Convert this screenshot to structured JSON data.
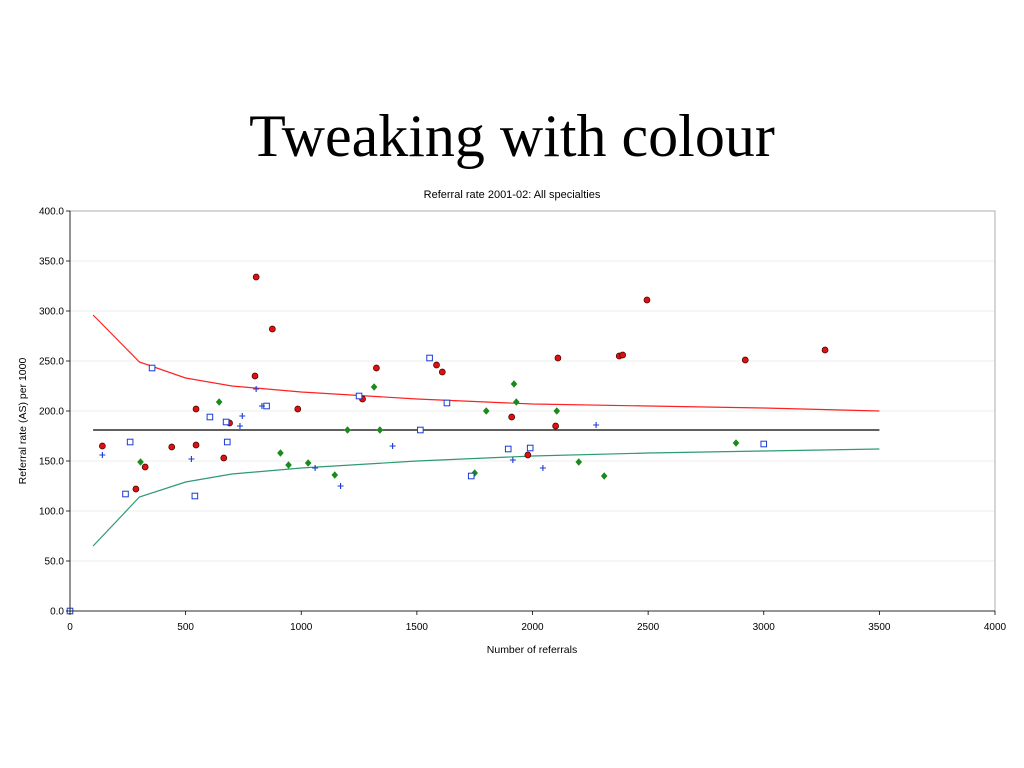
{
  "slide": {
    "title": "Tweaking with colour"
  },
  "chart_data": {
    "type": "scatter",
    "title": "Referral rate 2001-02: All specialties",
    "xlabel": "Number of referrals",
    "ylabel": "Referral rate (AS) per 1000",
    "xlim": [
      0,
      4000
    ],
    "ylim": [
      0,
      400
    ],
    "xticks": [
      0,
      500,
      1000,
      1500,
      2000,
      2500,
      3000,
      3500,
      4000
    ],
    "yticks": [
      0,
      50,
      100,
      150,
      200,
      250,
      300,
      350,
      400
    ],
    "x_tick_labels": [
      "0",
      "500",
      "1000",
      "1500",
      "2000",
      "2500",
      "3000",
      "3500",
      "4000"
    ],
    "y_tick_labels": [
      "0.0",
      "50.0",
      "100.0",
      "150.0",
      "200.0",
      "250.0",
      "300.0",
      "350.0",
      "400.0"
    ],
    "grid": "horizontal",
    "legend": "none",
    "scatter_series": [
      {
        "marker": "circle",
        "color": "#e01010",
        "points": [
          [
            140,
            165
          ],
          [
            285,
            122
          ],
          [
            325,
            144
          ],
          [
            440,
            164
          ],
          [
            545,
            202
          ],
          [
            545,
            166
          ],
          [
            665,
            153
          ],
          [
            690,
            188
          ],
          [
            800,
            235
          ],
          [
            805,
            334
          ],
          [
            875,
            282
          ],
          [
            985,
            202
          ],
          [
            1265,
            212
          ],
          [
            1325,
            243
          ],
          [
            1585,
            246
          ],
          [
            1610,
            239
          ],
          [
            1910,
            194
          ],
          [
            1980,
            156
          ],
          [
            2100,
            185
          ],
          [
            2110,
            253
          ],
          [
            2375,
            255
          ],
          [
            2390,
            256
          ],
          [
            2495,
            311
          ],
          [
            2920,
            251
          ],
          [
            3265,
            261
          ]
        ]
      },
      {
        "marker": "diamond",
        "color": "#1a8a1a",
        "points": [
          [
            305,
            149
          ],
          [
            645,
            209
          ],
          [
            910,
            158
          ],
          [
            945,
            146
          ],
          [
            1030,
            148
          ],
          [
            1145,
            136
          ],
          [
            1200,
            181
          ],
          [
            1315,
            224
          ],
          [
            1340,
            181
          ],
          [
            1750,
            138
          ],
          [
            1800,
            200
          ],
          [
            1920,
            227
          ],
          [
            1930,
            209
          ],
          [
            2105,
            200
          ],
          [
            2200,
            149
          ],
          [
            2310,
            135
          ],
          [
            2880,
            168
          ]
        ]
      },
      {
        "marker": "square",
        "color": "#1a3ad8",
        "points": [
          [
            0,
            0
          ],
          [
            240,
            117
          ],
          [
            260,
            169
          ],
          [
            355,
            243
          ],
          [
            540,
            115
          ],
          [
            605,
            194
          ],
          [
            675,
            189
          ],
          [
            680,
            169
          ],
          [
            850,
            205
          ],
          [
            1250,
            215
          ],
          [
            1515,
            181
          ],
          [
            1555,
            253
          ],
          [
            1630,
            208
          ],
          [
            1735,
            135
          ],
          [
            1895,
            162
          ],
          [
            1990,
            163
          ],
          [
            3000,
            167
          ]
        ]
      },
      {
        "marker": "plus",
        "color": "#1a3ad8",
        "points": [
          [
            140,
            156
          ],
          [
            525,
            152
          ],
          [
            735,
            185
          ],
          [
            745,
            195
          ],
          [
            805,
            222
          ],
          [
            830,
            205
          ],
          [
            1060,
            143
          ],
          [
            1170,
            125
          ],
          [
            1395,
            165
          ],
          [
            1915,
            151
          ],
          [
            2045,
            143
          ],
          [
            2275,
            186
          ]
        ]
      }
    ],
    "line_series": [
      {
        "role": "upper-limit",
        "color": "#ff2020",
        "points": [
          [
            100,
            296
          ],
          [
            300,
            249
          ],
          [
            500,
            233
          ],
          [
            700,
            225
          ],
          [
            1000,
            219
          ],
          [
            1500,
            212
          ],
          [
            2000,
            207
          ],
          [
            2500,
            205
          ],
          [
            3000,
            203
          ],
          [
            3500,
            200
          ]
        ]
      },
      {
        "role": "mean",
        "color": "#000000",
        "points": [
          [
            100,
            181
          ],
          [
            3500,
            181
          ]
        ]
      },
      {
        "role": "lower-limit",
        "color": "#2e9a70",
        "points": [
          [
            100,
            65
          ],
          [
            300,
            114
          ],
          [
            500,
            129
          ],
          [
            700,
            137
          ],
          [
            1000,
            143
          ],
          [
            1500,
            150
          ],
          [
            2000,
            155
          ],
          [
            2500,
            158
          ],
          [
            3000,
            160
          ],
          [
            3500,
            162
          ]
        ]
      }
    ]
  }
}
